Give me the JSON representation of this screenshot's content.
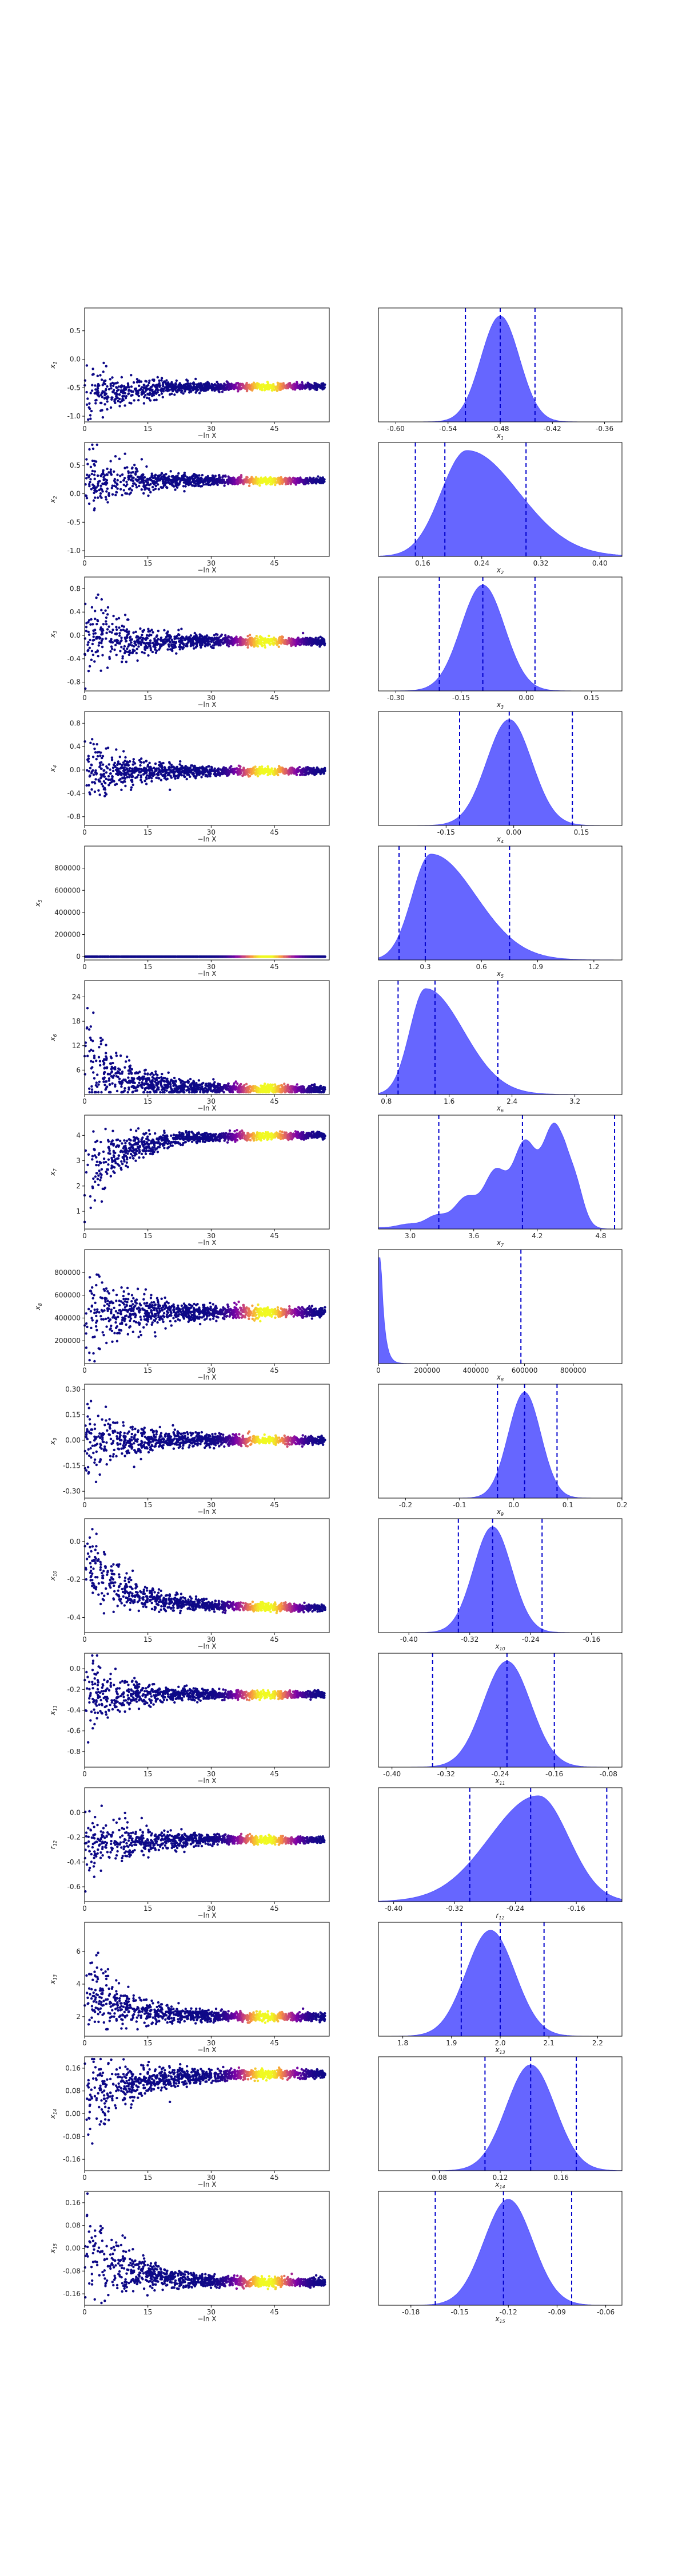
{
  "chart_data": {
    "type": "trace-and-marginal-grid",
    "colormap": "plasma",
    "scatter_color_low": "#0d0887",
    "scatter_color_high": "#f0f921",
    "marginal_fill": "#5555ff",
    "quantile_line_color": "#0000cc",
    "trace_xlabel": "−ln X",
    "trace_xticks": [
      "0",
      "15",
      "30",
      "45"
    ],
    "trace_xlim": [
      0,
      58
    ],
    "rows": [
      {
        "param": "x",
        "sub": "1",
        "trace_yticks": [
          "0.5",
          "0.0",
          "-0.5",
          "-1.0"
        ],
        "trace_ylim": [
          -1.1,
          0.9
        ],
        "trace_converge": -0.48,
        "trace_spread0": 0.55,
        "trace_bias0": -0.2,
        "marginal_xticks": [
          "-0.60",
          "-0.54",
          "-0.48",
          "-0.42",
          "-0.36"
        ],
        "marginal_xlim": [
          -0.62,
          -0.34
        ],
        "density_peak": -0.48,
        "density_sd": 0.022,
        "quantiles": [
          -0.52,
          -0.48,
          -0.44
        ]
      },
      {
        "param": "x",
        "sub": "2",
        "trace_yticks": [
          "0.5",
          "0.0",
          "-0.5",
          "-1.0"
        ],
        "trace_ylim": [
          -1.1,
          0.9
        ],
        "trace_converge": 0.23,
        "trace_spread0": 0.6,
        "trace_bias0": 0.0,
        "marginal_xticks": [
          "0.16",
          "0.24",
          "0.32",
          "0.40"
        ],
        "marginal_xlim": [
          0.1,
          0.43
        ],
        "density_peak": 0.22,
        "density_sd": 0.035,
        "quantiles": [
          0.15,
          0.19,
          0.3
        ]
      },
      {
        "param": "x",
        "sub": "3",
        "trace_yticks": [
          "0.8",
          "0.4",
          "0.0",
          "-0.4",
          "-0.8"
        ],
        "trace_ylim": [
          -0.95,
          1.0
        ],
        "trace_converge": -0.1,
        "trace_spread0": 0.7,
        "trace_bias0": 0.0,
        "marginal_xticks": [
          "-0.30",
          "-0.15",
          "0.00",
          "0.15"
        ],
        "marginal_xlim": [
          -0.34,
          0.22
        ],
        "density_peak": -0.1,
        "density_sd": 0.05,
        "quantiles": [
          -0.2,
          -0.1,
          0.02
        ]
      },
      {
        "param": "x",
        "sub": "4",
        "trace_yticks": [
          "0.8",
          "0.4",
          "0.0",
          "-0.4",
          "-0.8"
        ],
        "trace_ylim": [
          -0.95,
          1.0
        ],
        "trace_converge": -0.02,
        "trace_spread0": 0.6,
        "trace_bias0": 0.0,
        "marginal_xticks": [
          "-0.15",
          "0.00",
          "0.15"
        ],
        "marginal_xlim": [
          -0.3,
          0.24
        ],
        "density_peak": -0.01,
        "density_sd": 0.05,
        "quantiles": [
          -0.12,
          -0.01,
          0.13
        ]
      },
      {
        "param": "x",
        "sub": "5",
        "trace_yticks": [
          "800000",
          "600000",
          "400000",
          "200000",
          "0"
        ],
        "trace_ylim": [
          -30000,
          1000000
        ],
        "trace_converge": 5,
        "trace_spread0": 20,
        "trace_bias0": 0.0,
        "marginal_xticks": [
          "0.3",
          "0.6",
          "0.9",
          "1.2"
        ],
        "marginal_xlim": [
          0.05,
          1.35
        ],
        "density_peak": 0.33,
        "density_sd": 0.1,
        "quantiles": [
          0.16,
          0.3,
          0.75
        ]
      },
      {
        "param": "x",
        "sub": "6",
        "trace_yticks": [
          "24",
          "18",
          "12",
          "6"
        ],
        "trace_ylim": [
          0,
          28
        ],
        "trace_converge": 1.2,
        "trace_spread0": 10,
        "trace_bias0": 8,
        "marginal_xticks": [
          "0.8",
          "1.6",
          "2.4",
          "3.2"
        ],
        "marginal_xlim": [
          0.7,
          3.8
        ],
        "density_peak": 1.3,
        "density_sd": 0.2,
        "quantiles": [
          0.95,
          1.42,
          2.22
        ]
      },
      {
        "param": "x",
        "sub": "7",
        "trace_yticks": [
          "4",
          "3",
          "2",
          "1"
        ],
        "trace_ylim": [
          0.3,
          4.8
        ],
        "trace_converge": 4.0,
        "trace_spread0": 1.4,
        "trace_bias0": -1.5,
        "marginal_xticks": [
          "3.0",
          "3.6",
          "4.2",
          "4.8"
        ],
        "marginal_xlim": [
          2.7,
          5.0
        ],
        "density_peak": 4.2,
        "density_sd": 0.3,
        "quantiles": [
          3.27,
          4.06,
          4.93
        ]
      },
      {
        "param": "x",
        "sub": "8",
        "trace_yticks": [
          "800000",
          "600000",
          "400000",
          "200000"
        ],
        "trace_ylim": [
          0,
          1000000
        ],
        "trace_converge": 450000,
        "trace_spread0": 450000,
        "trace_bias0": 0.0,
        "marginal_xticks": [
          "0",
          "200000",
          "400000",
          "600000",
          "800000"
        ],
        "marginal_xlim": [
          0,
          1000000
        ],
        "density_peak": 10000,
        "density_sd": 15000,
        "quantiles": [
          585000
        ]
      },
      {
        "param": "x",
        "sub": "9",
        "trace_yticks": [
          "0.30",
          "0.15",
          "0.00",
          "-0.15",
          "-0.30"
        ],
        "trace_ylim": [
          -0.34,
          0.33
        ],
        "trace_converge": 0.0,
        "trace_spread0": 0.25,
        "trace_bias0": 0.0,
        "marginal_xticks": [
          "-0.2",
          "-0.1",
          "0.0",
          "0.1",
          "0.2"
        ],
        "marginal_xlim": [
          -0.25,
          0.2
        ],
        "density_peak": 0.02,
        "density_sd": 0.03,
        "quantiles": [
          -0.03,
          0.02,
          0.08
        ]
      },
      {
        "param": "x",
        "sub": "10",
        "trace_yticks": [
          "0.0",
          "-0.2",
          "-0.4"
        ],
        "trace_ylim": [
          -0.48,
          0.12
        ],
        "trace_converge": -0.35,
        "trace_spread0": 0.2,
        "trace_bias0": 0.25,
        "marginal_xticks": [
          "-0.40",
          "-0.32",
          "-0.24",
          "-0.16"
        ],
        "marginal_xlim": [
          -0.44,
          -0.12
        ],
        "density_peak": -0.29,
        "density_sd": 0.025,
        "quantiles": [
          -0.335,
          -0.29,
          -0.225
        ]
      },
      {
        "param": "x",
        "sub": "11",
        "trace_yticks": [
          "0.0",
          "-0.2",
          "-0.4",
          "-0.6",
          "-0.8"
        ],
        "trace_ylim": [
          -0.95,
          0.15
        ],
        "trace_converge": -0.25,
        "trace_spread0": 0.35,
        "trace_bias0": 0.0,
        "marginal_xticks": [
          "-0.40",
          "-0.32",
          "-0.24",
          "-0.16",
          "-0.08"
        ],
        "marginal_xlim": [
          -0.42,
          -0.06
        ],
        "density_peak": -0.23,
        "density_sd": 0.035,
        "quantiles": [
          -0.34,
          -0.23,
          -0.16
        ]
      },
      {
        "param": "r",
        "sub": "12",
        "trace_yticks": [
          "0.0",
          "-0.2",
          "-0.4",
          "-0.6"
        ],
        "trace_ylim": [
          -0.72,
          0.2
        ],
        "trace_converge": -0.22,
        "trace_spread0": 0.3,
        "trace_bias0": -0.05,
        "marginal_xticks": [
          "-0.40",
          "-0.32",
          "-0.24",
          "-0.16"
        ],
        "marginal_xlim": [
          -0.42,
          -0.1
        ],
        "density_peak": -0.21,
        "density_sd": 0.04,
        "quantiles": [
          -0.3,
          -0.22,
          -0.12
        ]
      },
      {
        "param": "x",
        "sub": "13",
        "trace_yticks": [
          "6",
          "4",
          "2"
        ],
        "trace_ylim": [
          0.8,
          7.8
        ],
        "trace_converge": 1.98,
        "trace_spread0": 2.5,
        "trace_bias0": 1.5,
        "marginal_xticks": [
          "1.8",
          "1.9",
          "2.0",
          "2.1",
          "2.2"
        ],
        "marginal_xlim": [
          1.75,
          2.25
        ],
        "density_peak": 1.98,
        "density_sd": 0.05,
        "quantiles": [
          1.92,
          2.0,
          2.09
        ]
      },
      {
        "param": "x",
        "sub": "14",
        "trace_yticks": [
          "0.16",
          "0.08",
          "0.00",
          "-0.08",
          "-0.16"
        ],
        "trace_ylim": [
          -0.2,
          0.2
        ],
        "trace_converge": 0.14,
        "trace_spread0": 0.16,
        "trace_bias0": -0.1,
        "marginal_xticks": [
          "0.08",
          "0.12",
          "0.16"
        ],
        "marginal_xlim": [
          0.04,
          0.2
        ],
        "density_peak": 0.14,
        "density_sd": 0.016,
        "quantiles": [
          0.11,
          0.14,
          0.17
        ]
      },
      {
        "param": "x",
        "sub": "15",
        "trace_yticks": [
          "0.16",
          "0.08",
          "0.00",
          "-0.08",
          "-0.16"
        ],
        "trace_ylim": [
          -0.2,
          0.2
        ],
        "trace_converge": -0.12,
        "trace_spread0": 0.16,
        "trace_bias0": 0.12,
        "marginal_xticks": [
          "-0.18",
          "-0.15",
          "-0.12",
          "-0.09",
          "-0.06"
        ],
        "marginal_xlim": [
          -0.2,
          -0.05
        ],
        "density_peak": -0.12,
        "density_sd": 0.015,
        "quantiles": [
          -0.165,
          -0.123,
          -0.081
        ]
      }
    ]
  }
}
